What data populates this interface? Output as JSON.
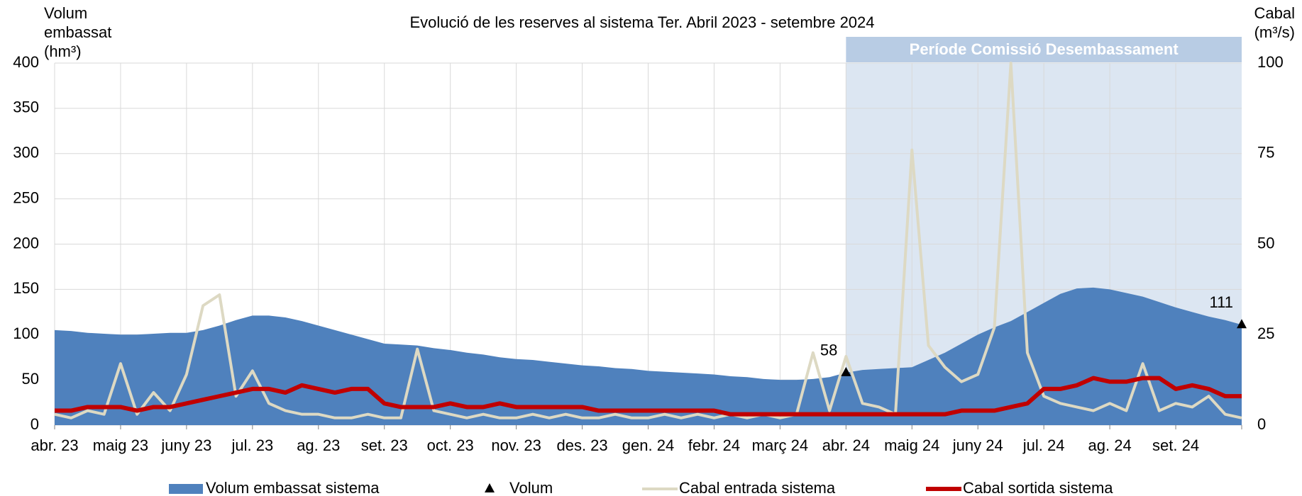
{
  "chart_data": {
    "type": "combo",
    "title": "Evolució de les reserves al sistema Ter. Abril 2023 - setembre 2024",
    "y_label_lines": [
      "Volum",
      "embassat",
      "(hm³)"
    ],
    "y2_label_lines": [
      "Cabal",
      "(m³/s)"
    ],
    "highlight": {
      "label": "Període Comissió Desembassament",
      "xlim": [
        12,
        18
      ]
    },
    "xlim": [
      0,
      18
    ],
    "xticks": [
      {
        "value": 0,
        "label": "abr. 23"
      },
      {
        "value": 1,
        "label": "maig 23"
      },
      {
        "value": 2,
        "label": "juny 23"
      },
      {
        "value": 3,
        "label": "jul. 23"
      },
      {
        "value": 4,
        "label": "ag. 23"
      },
      {
        "value": 5,
        "label": "set. 23"
      },
      {
        "value": 6,
        "label": "oct. 23"
      },
      {
        "value": 7,
        "label": "nov. 23"
      },
      {
        "value": 8,
        "label": "des. 23"
      },
      {
        "value": 9,
        "label": "gen. 24"
      },
      {
        "value": 10,
        "label": "febr. 24"
      },
      {
        "value": 11,
        "label": "març 24"
      },
      {
        "value": 12,
        "label": "abr. 24"
      },
      {
        "value": 13,
        "label": "maig 24"
      },
      {
        "value": 14,
        "label": "juny 24"
      },
      {
        "value": 15,
        "label": "jul. 24"
      },
      {
        "value": 16,
        "label": "ag. 24"
      },
      {
        "value": 17,
        "label": "set. 24"
      }
    ],
    "ylim": [
      0,
      400
    ],
    "yticks": [
      0,
      50,
      100,
      150,
      200,
      250,
      300,
      350,
      400
    ],
    "y2lim": [
      0,
      100
    ],
    "y2ticks": [
      0,
      25,
      50,
      75,
      100
    ],
    "grid": true,
    "x": [
      0,
      0.25,
      0.5,
      0.75,
      1,
      1.25,
      1.5,
      1.75,
      2,
      2.25,
      2.5,
      2.75,
      3,
      3.25,
      3.5,
      3.75,
      4,
      4.25,
      4.5,
      4.75,
      5,
      5.25,
      5.5,
      5.75,
      6,
      6.25,
      6.5,
      6.75,
      7,
      7.25,
      7.5,
      7.75,
      8,
      8.25,
      8.5,
      8.75,
      9,
      9.25,
      9.5,
      9.75,
      10,
      10.25,
      10.5,
      10.75,
      11,
      11.25,
      11.5,
      11.75,
      12,
      12.25,
      12.5,
      12.75,
      13,
      13.25,
      13.5,
      13.75,
      14,
      14.25,
      14.5,
      14.75,
      15,
      15.25,
      15.5,
      15.75,
      16,
      16.25,
      16.5,
      16.75,
      17,
      17.25,
      17.5,
      17.75,
      18
    ],
    "series": [
      {
        "name": "Volum embassat sistema",
        "type": "area",
        "color": "#4f81bd",
        "values": [
          105,
          104,
          102,
          101,
          100,
          100,
          101,
          102,
          102,
          105,
          110,
          116,
          121,
          121,
          119,
          115,
          110,
          105,
          100,
          95,
          90,
          89,
          88,
          85,
          83,
          80,
          78,
          75,
          73,
          72,
          70,
          68,
          66,
          65,
          63,
          62,
          60,
          59,
          58,
          57,
          56,
          54,
          53,
          51,
          50,
          50,
          51,
          53,
          58,
          61,
          62,
          63,
          64,
          72,
          80,
          90,
          100,
          108,
          115,
          125,
          135,
          145,
          151,
          152,
          150,
          146,
          142,
          136,
          130,
          125,
          120,
          116,
          111
        ]
      },
      {
        "name": "Volum",
        "type": "marker",
        "color": "#000000",
        "x": [
          12,
          18
        ],
        "values": [
          58,
          111
        ]
      },
      {
        "name": "Cabal entrada sistema",
        "type": "line",
        "axis": "y2",
        "color": "#ddd9c3",
        "values": [
          3,
          2,
          4,
          3,
          17,
          3,
          9,
          4,
          14,
          33,
          36,
          8,
          15,
          6,
          4,
          3,
          3,
          2,
          2,
          3,
          2,
          2,
          21,
          4,
          3,
          2,
          3,
          2,
          2,
          3,
          2,
          3,
          2,
          2,
          3,
          2,
          2,
          3,
          2,
          3,
          2,
          3,
          2,
          3,
          2,
          3,
          20,
          4,
          19,
          6,
          5,
          3,
          76,
          22,
          16,
          12,
          14,
          27,
          100,
          20,
          8,
          6,
          5,
          4,
          6,
          4,
          17,
          4,
          6,
          5,
          8,
          3,
          2
        ]
      },
      {
        "name": "Cabal sortida sistema",
        "type": "line",
        "axis": "y2",
        "color": "#c00000",
        "values": [
          4,
          4,
          5,
          5,
          5,
          4,
          5,
          5,
          6,
          7,
          8,
          9,
          10,
          10,
          9,
          11,
          10,
          9,
          10,
          10,
          6,
          5,
          5,
          5,
          6,
          5,
          5,
          6,
          5,
          5,
          5,
          5,
          5,
          4,
          4,
          4,
          4,
          4,
          4,
          4,
          4,
          3,
          3,
          3,
          3,
          3,
          3,
          3,
          3,
          3,
          3,
          3,
          3,
          3,
          3,
          4,
          4,
          4,
          5,
          6,
          10,
          10,
          11,
          13,
          12,
          12,
          13,
          13,
          10,
          11,
          10,
          8,
          8
        ]
      }
    ]
  }
}
